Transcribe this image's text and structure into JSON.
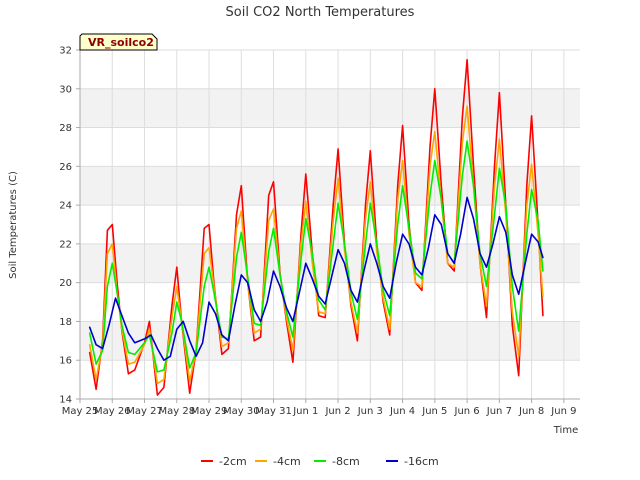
{
  "chart_data": {
    "type": "line",
    "title": "Soil CO2 North Temperatures",
    "xlabel": "Time",
    "ylabel": "Soil Temperatures (C)",
    "site_label": "VR_soilco2",
    "ylim": [
      14,
      32
    ],
    "yticks": [
      14,
      16,
      18,
      20,
      22,
      24,
      26,
      28,
      30,
      32
    ],
    "xlim": [
      0,
      15.5
    ],
    "xticks": [
      {
        "pos": 0,
        "label": "May 25"
      },
      {
        "pos": 1,
        "label": "May 26"
      },
      {
        "pos": 2,
        "label": "May 27"
      },
      {
        "pos": 3,
        "label": "May 28"
      },
      {
        "pos": 4,
        "label": "May 29"
      },
      {
        "pos": 5,
        "label": "May 30"
      },
      {
        "pos": 6,
        "label": "May 31"
      },
      {
        "pos": 7,
        "label": "Jun 1"
      },
      {
        "pos": 8,
        "label": "Jun 2"
      },
      {
        "pos": 9,
        "label": "Jun 3"
      },
      {
        "pos": 10,
        "label": "Jun 4"
      },
      {
        "pos": 11,
        "label": "Jun 5"
      },
      {
        "pos": 12,
        "label": "Jun 6"
      },
      {
        "pos": 13,
        "label": "Jun 7"
      },
      {
        "pos": 14,
        "label": "Jun 8"
      },
      {
        "pos": 15,
        "label": "Jun 9"
      }
    ],
    "legend_position": "bottom",
    "series": [
      {
        "name": "-2cm",
        "color": "#ff0000",
        "x": [
          0.3,
          0.5,
          0.7,
          0.85,
          1.0,
          1.15,
          1.3,
          1.5,
          1.7,
          2.0,
          2.15,
          2.4,
          2.6,
          2.85,
          3.0,
          3.15,
          3.4,
          3.6,
          3.85,
          4.0,
          4.15,
          4.4,
          4.6,
          4.85,
          5.0,
          5.2,
          5.4,
          5.6,
          5.85,
          6.0,
          6.2,
          6.4,
          6.6,
          6.85,
          7.0,
          7.2,
          7.4,
          7.6,
          7.85,
          8.0,
          8.2,
          8.4,
          8.6,
          8.85,
          9.0,
          9.2,
          9.4,
          9.6,
          9.85,
          10.0,
          10.2,
          10.4,
          10.6,
          10.85,
          11.0,
          11.2,
          11.4,
          11.6,
          11.85,
          12.0,
          12.2,
          12.4,
          12.6,
          12.85,
          13.0,
          13.2,
          13.4,
          13.6,
          13.85,
          14.0,
          14.2,
          14.35
        ],
        "y": [
          16.4,
          14.5,
          17.0,
          22.7,
          23.0,
          20.0,
          17.5,
          15.3,
          15.5,
          16.9,
          18.0,
          14.2,
          14.6,
          18.8,
          20.8,
          18.0,
          14.3,
          16.5,
          22.8,
          23.0,
          20.0,
          16.3,
          16.6,
          23.5,
          25.0,
          20.0,
          17.0,
          17.2,
          24.5,
          25.2,
          20.5,
          18.0,
          15.9,
          22.5,
          25.6,
          21.5,
          18.3,
          18.2,
          24.0,
          26.9,
          22.0,
          18.8,
          17.0,
          24.0,
          26.8,
          22.0,
          19.0,
          17.3,
          25.0,
          28.1,
          23.0,
          20.0,
          19.6,
          27.0,
          30.0,
          25.0,
          21.0,
          20.6,
          28.5,
          31.5,
          26.0,
          21.0,
          18.2,
          26.0,
          29.8,
          24.0,
          17.8,
          15.2,
          25.0,
          28.6,
          23.0,
          18.3
        ]
      },
      {
        "name": "-4cm",
        "color": "#ffa500",
        "x": [
          0.3,
          0.5,
          0.7,
          0.85,
          1.0,
          1.15,
          1.3,
          1.5,
          1.7,
          2.0,
          2.15,
          2.4,
          2.6,
          2.85,
          3.0,
          3.15,
          3.4,
          3.6,
          3.85,
          4.0,
          4.15,
          4.4,
          4.6,
          4.85,
          5.0,
          5.2,
          5.4,
          5.6,
          5.85,
          6.0,
          6.2,
          6.4,
          6.6,
          6.85,
          7.0,
          7.2,
          7.4,
          7.6,
          7.85,
          8.0,
          8.2,
          8.4,
          8.6,
          8.85,
          9.0,
          9.2,
          9.4,
          9.6,
          9.85,
          10.0,
          10.2,
          10.4,
          10.6,
          10.85,
          11.0,
          11.2,
          11.4,
          11.6,
          11.85,
          12.0,
          12.2,
          12.4,
          12.6,
          12.85,
          13.0,
          13.2,
          13.4,
          13.6,
          13.85,
          14.0,
          14.2,
          14.35
        ],
        "y": [
          16.8,
          15.0,
          16.8,
          21.5,
          22.0,
          19.5,
          17.6,
          15.8,
          15.9,
          16.8,
          17.6,
          14.8,
          15.0,
          18.2,
          19.8,
          18.0,
          14.9,
          16.5,
          21.5,
          21.8,
          19.8,
          16.7,
          16.9,
          22.8,
          23.7,
          20.0,
          17.4,
          17.6,
          23.2,
          23.8,
          20.4,
          18.2,
          16.5,
          22.0,
          24.2,
          21.0,
          18.5,
          18.4,
          23.2,
          25.4,
          21.7,
          19.0,
          17.4,
          23.3,
          25.2,
          21.6,
          19.2,
          17.6,
          24.3,
          26.3,
          22.5,
          20.0,
          19.8,
          26.0,
          27.8,
          24.2,
          21.0,
          20.8,
          27.2,
          29.1,
          25.0,
          21.0,
          18.8,
          25.0,
          27.4,
          23.5,
          18.5,
          16.2,
          24.0,
          26.1,
          22.5,
          19.3
        ]
      },
      {
        "name": "-8cm",
        "color": "#00ee00",
        "x": [
          0.3,
          0.5,
          0.7,
          0.85,
          1.0,
          1.15,
          1.3,
          1.5,
          1.7,
          2.0,
          2.15,
          2.4,
          2.6,
          2.85,
          3.0,
          3.15,
          3.4,
          3.6,
          3.85,
          4.0,
          4.15,
          4.4,
          4.6,
          4.85,
          5.0,
          5.2,
          5.4,
          5.6,
          5.85,
          6.0,
          6.2,
          6.4,
          6.6,
          6.85,
          7.0,
          7.2,
          7.4,
          7.6,
          7.85,
          8.0,
          8.2,
          8.4,
          8.6,
          8.85,
          9.0,
          9.2,
          9.4,
          9.6,
          9.85,
          10.0,
          10.2,
          10.4,
          10.6,
          10.85,
          11.0,
          11.2,
          11.4,
          11.6,
          11.85,
          12.0,
          12.2,
          12.4,
          12.6,
          12.85,
          13.0,
          13.2,
          13.4,
          13.6,
          13.85,
          14.0,
          14.2,
          14.35
        ],
        "y": [
          17.4,
          15.8,
          16.5,
          19.8,
          21.0,
          19.5,
          17.8,
          16.4,
          16.3,
          16.9,
          17.3,
          15.4,
          15.5,
          17.4,
          19.0,
          18.0,
          15.6,
          16.4,
          19.8,
          20.8,
          19.5,
          17.2,
          17.1,
          21.3,
          22.6,
          20.3,
          17.9,
          17.8,
          21.6,
          22.8,
          20.4,
          18.5,
          17.2,
          21.2,
          23.3,
          21.5,
          19.1,
          18.6,
          22.0,
          24.1,
          22.0,
          19.5,
          18.1,
          22.0,
          24.1,
          22.0,
          19.6,
          18.3,
          23.0,
          25.0,
          22.8,
          20.5,
          20.2,
          24.5,
          26.3,
          24.3,
          21.5,
          21.0,
          25.5,
          27.3,
          25.0,
          21.5,
          19.8,
          23.5,
          25.9,
          24.0,
          19.8,
          17.5,
          22.5,
          24.8,
          23.2,
          20.6
        ]
      },
      {
        "name": "-16cm",
        "color": "#0000cc",
        "x": [
          0.3,
          0.5,
          0.7,
          0.9,
          1.1,
          1.3,
          1.5,
          1.7,
          2.0,
          2.2,
          2.4,
          2.6,
          2.8,
          3.0,
          3.2,
          3.4,
          3.6,
          3.8,
          4.0,
          4.2,
          4.4,
          4.6,
          4.8,
          5.0,
          5.2,
          5.4,
          5.6,
          5.8,
          6.0,
          6.2,
          6.4,
          6.6,
          6.8,
          7.0,
          7.2,
          7.4,
          7.6,
          7.8,
          8.0,
          8.2,
          8.4,
          8.6,
          8.8,
          9.0,
          9.2,
          9.4,
          9.6,
          9.8,
          10.0,
          10.2,
          10.4,
          10.6,
          10.8,
          11.0,
          11.2,
          11.4,
          11.6,
          11.8,
          12.0,
          12.2,
          12.4,
          12.6,
          12.8,
          13.0,
          13.2,
          13.4,
          13.6,
          13.8,
          14.0,
          14.2,
          14.35
        ],
        "y": [
          17.7,
          16.8,
          16.6,
          17.8,
          19.2,
          18.3,
          17.4,
          16.9,
          17.1,
          17.3,
          16.6,
          16.0,
          16.2,
          17.6,
          18.0,
          17.0,
          16.2,
          16.9,
          19.0,
          18.4,
          17.3,
          17.0,
          18.8,
          20.4,
          20.0,
          18.6,
          18.0,
          19.0,
          20.6,
          19.8,
          18.7,
          18.0,
          19.5,
          21.0,
          20.2,
          19.3,
          18.9,
          20.3,
          21.7,
          21.0,
          19.6,
          19.0,
          20.6,
          22.0,
          21.0,
          19.8,
          19.2,
          21.0,
          22.5,
          22.0,
          20.8,
          20.4,
          21.8,
          23.5,
          23.0,
          21.5,
          21.0,
          22.5,
          24.4,
          23.3,
          21.5,
          20.8,
          22.0,
          23.4,
          22.6,
          20.4,
          19.4,
          21.0,
          22.5,
          22.1,
          21.3
        ]
      }
    ]
  }
}
